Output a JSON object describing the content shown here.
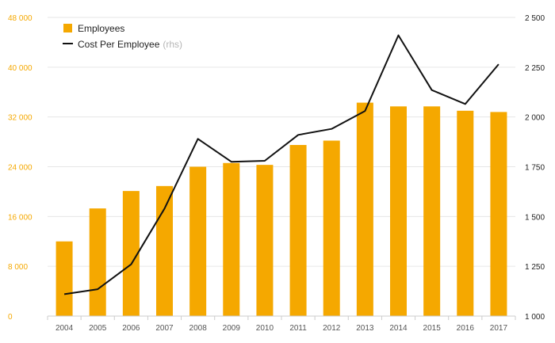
{
  "chart_data": {
    "type": "bar+line",
    "categories": [
      "2004",
      "2005",
      "2006",
      "2007",
      "2008",
      "2009",
      "2010",
      "2011",
      "2012",
      "2013",
      "2014",
      "2015",
      "2016",
      "2017"
    ],
    "series": [
      {
        "name": "Employees",
        "type": "bar",
        "axis": "left",
        "values": [
          12000,
          17300,
          20100,
          20900,
          24000,
          24600,
          24300,
          27500,
          28200,
          34300,
          33700,
          33700,
          33000,
          32800
        ]
      },
      {
        "name": "Cost Per Employee",
        "note": "(rhs)",
        "type": "line",
        "axis": "right",
        "values": [
          1110,
          1135,
          1260,
          1540,
          1890,
          1775,
          1780,
          1910,
          1940,
          2030,
          2410,
          2135,
          2065,
          2265
        ]
      }
    ],
    "y_left": {
      "ylim": [
        0,
        48000
      ],
      "ticks": [
        "0",
        "8 000",
        "16 000",
        "24 000",
        "32 000",
        "40 000",
        "48 000"
      ]
    },
    "y_right": {
      "ylim": [
        1000,
        2500
      ],
      "ticks": [
        "1 000",
        "1 250",
        "1 500",
        "1 750",
        "2 000",
        "2 250",
        "2 500"
      ]
    },
    "grid": true,
    "legend": "top-left"
  },
  "colors": {
    "bar": "#f5a800",
    "line": "#111111",
    "grid": "#e6e6e6",
    "axis": "#cccccc"
  }
}
